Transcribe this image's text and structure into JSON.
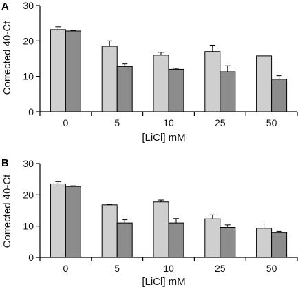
{
  "chart_data": [
    {
      "type": "bar",
      "panel": "A",
      "categories": [
        "0",
        "5",
        "10",
        "25",
        "50"
      ],
      "series": [
        {
          "values": [
            23.2,
            18.5,
            16.0,
            17.0,
            15.8
          ],
          "errors": [
            0.8,
            1.5,
            0.8,
            1.8,
            0
          ],
          "color": "#cfcfcf"
        },
        {
          "values": [
            22.8,
            12.8,
            12.0,
            11.3,
            9.2
          ],
          "errors": [
            0.2,
            0.7,
            0.3,
            1.7,
            1.0
          ],
          "color": "#8c8c8c"
        }
      ],
      "xlabel": "[LiCl] mM",
      "ylabel": "Corrected 40-Ct",
      "ylim": [
        0,
        30
      ],
      "yticks": [
        "0",
        "10",
        "20",
        "30"
      ]
    },
    {
      "type": "bar",
      "panel": "B",
      "categories": [
        "0",
        "5",
        "10",
        "25",
        "50"
      ],
      "series": [
        {
          "values": [
            23.5,
            16.8,
            17.7,
            12.3,
            9.3
          ],
          "errors": [
            0.7,
            0.2,
            0.6,
            1.3,
            1.4
          ],
          "color": "#cfcfcf"
        },
        {
          "values": [
            22.7,
            11.0,
            11.0,
            9.6,
            7.9
          ],
          "errors": [
            0.2,
            1.0,
            1.4,
            0.8,
            0.4
          ],
          "color": "#8c8c8c"
        }
      ],
      "xlabel": "[LiCl] mM",
      "ylabel": "Corrected 40-Ct",
      "ylim": [
        0,
        30
      ],
      "yticks": [
        "0",
        "10",
        "20",
        "30"
      ]
    }
  ]
}
